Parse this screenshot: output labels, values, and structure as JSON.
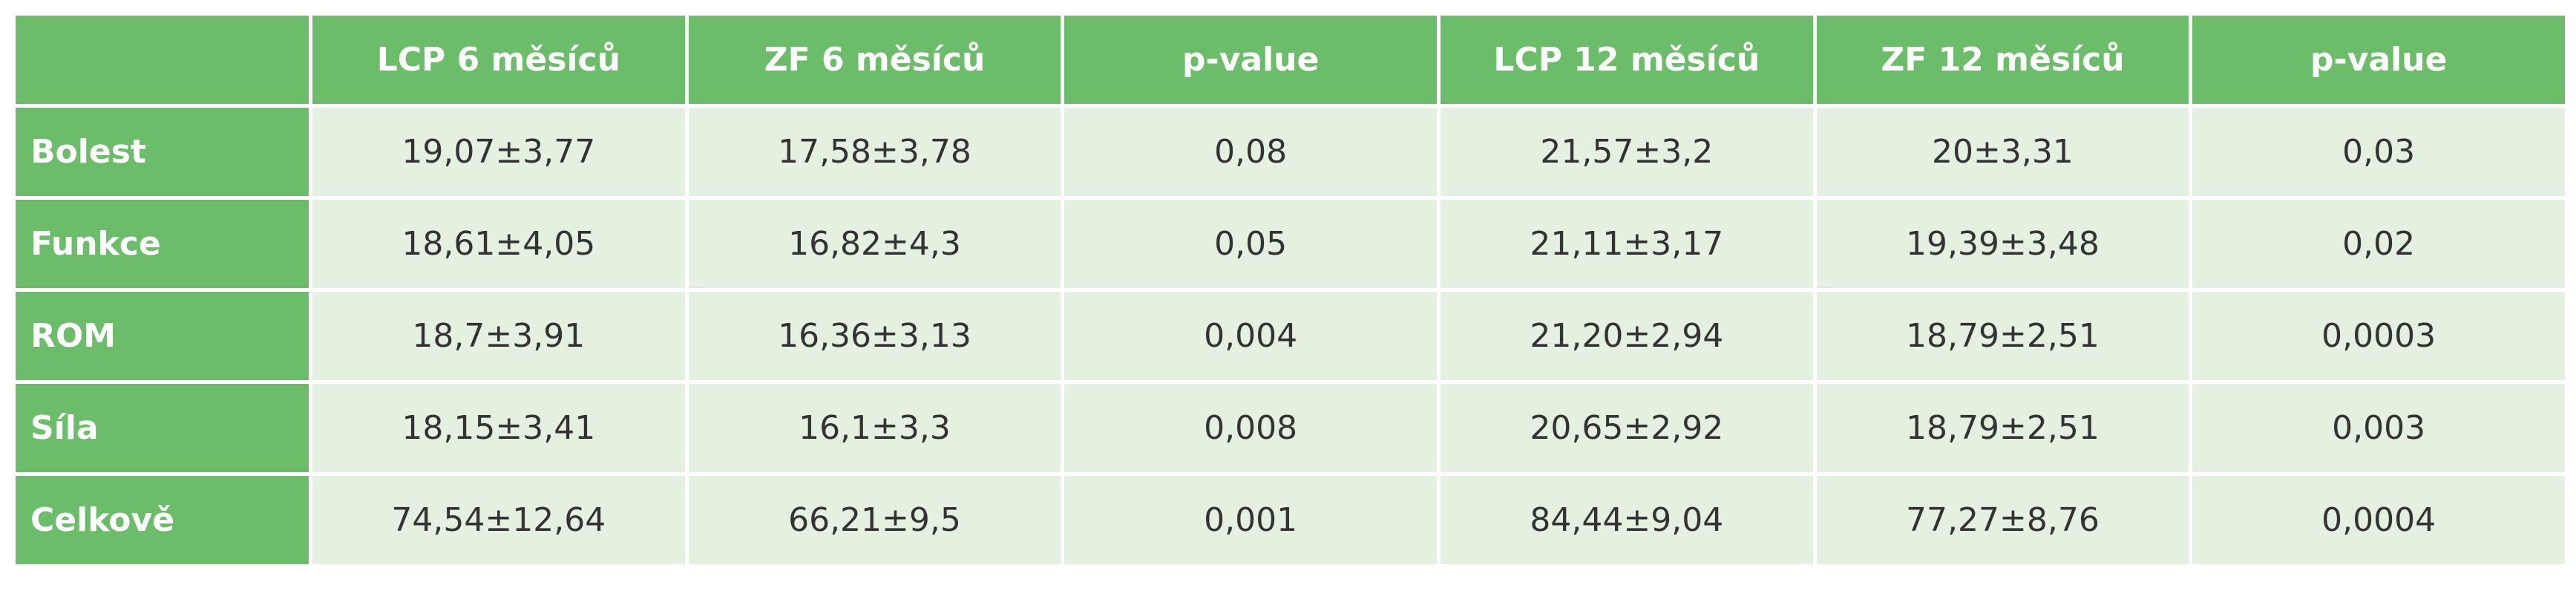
{
  "table": {
    "header": [
      "LCP 6 měsíců",
      "ZF 6 měsíců",
      "p-value",
      "LCP 12 měsíců",
      "ZF 12 měsíců",
      "p-value"
    ],
    "rows": [
      [
        "Bolest",
        "19,07±3,77",
        "17,58±3,78",
        "0,08",
        "21,57±3,2",
        "20±3,31",
        "0,03"
      ],
      [
        "Funkce",
        "18,61±4,05",
        "16,82±4,3",
        "0,05",
        "21,11±3,17",
        "19,39±3,48",
        "0,02"
      ],
      [
        "ROM",
        "18,7±3,91",
        "16,36±3,13",
        "0,004",
        "21,20±2,94",
        "18,79±2,51",
        "0,0003"
      ],
      [
        "Síla",
        "18,15±3,41",
        "16,1±3,3",
        "0,008",
        "20,65±2,92",
        "18,79±2,51",
        "0,003"
      ],
      [
        "Celkově",
        "74,54±12,64",
        "66,21±9,5",
        "0,001",
        "84,44±9,04",
        "77,27±8,76",
        "0,0004"
      ]
    ]
  }
}
